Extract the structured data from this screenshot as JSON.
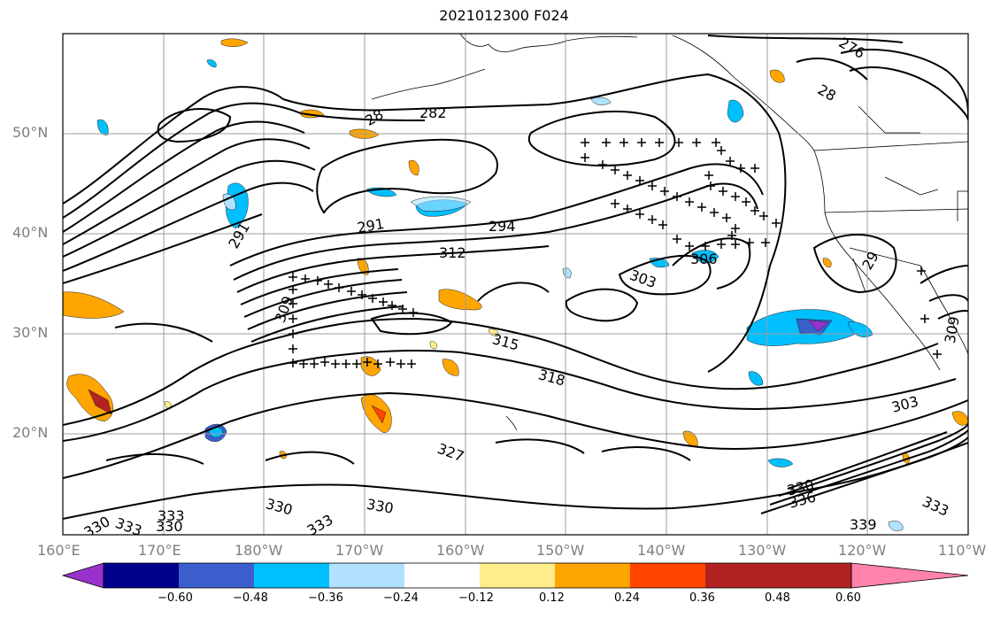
{
  "title": "2021012300 F024",
  "lon_labels": [
    "160°E",
    "170°E",
    "180°W",
    "170°W",
    "160°W",
    "150°W",
    "140°W",
    "130°W",
    "120°W",
    "110°W"
  ],
  "lat_labels": [
    "50°N",
    "40°N",
    "30°N",
    "20°N"
  ],
  "contour_labels": [
    "276",
    "28",
    "28",
    "282",
    "291",
    "291",
    "294",
    "312",
    "306",
    "303",
    "309",
    "309",
    "315",
    "318",
    "303",
    "327",
    "330",
    "330",
    "330",
    "333",
    "333",
    "330",
    "333",
    "330",
    "336",
    "339",
    "333",
    "29"
  ],
  "colorbar": {
    "ticks": [
      "−0.60",
      "−0.48",
      "−0.36",
      "−0.24",
      "−0.12",
      "0.12",
      "0.24",
      "0.36",
      "0.48",
      "0.60"
    ],
    "colors": [
      "#9932cc",
      "#00008b",
      "#3a5fcd",
      "#00bfff",
      "#b0e2ff",
      "#ffffff",
      "#ffec8b",
      "#ffa500",
      "#ff4500",
      "#b22222",
      "#ff82ab"
    ]
  }
}
